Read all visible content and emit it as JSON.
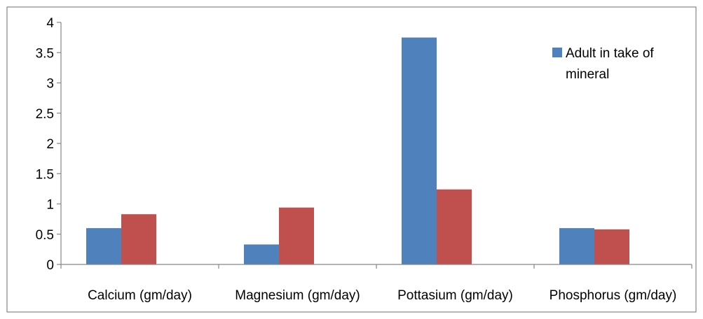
{
  "chart_data": {
    "type": "bar",
    "categories": [
      "Calcium (gm/day)",
      "Magnesium (gm/day)",
      "Pottasium (gm/day)",
      "Phosphorus (gm/day)"
    ],
    "series": [
      {
        "name": "Adult in take of mineral",
        "values": [
          0.6,
          0.33,
          3.75,
          0.6
        ],
        "color": "#4F81BD"
      },
      {
        "values": [
          0.83,
          0.94,
          1.24,
          0.58
        ],
        "color": "#C0504D"
      }
    ],
    "y_ticks": [
      "0",
      "0.5",
      "1",
      "1.5",
      "2",
      "2.5",
      "3",
      "3.5",
      "4"
    ],
    "ylim": [
      0,
      4
    ],
    "legend": {
      "position": "top-right",
      "lines": [
        "Adult in take of",
        "mineral"
      ]
    },
    "grid": false
  }
}
